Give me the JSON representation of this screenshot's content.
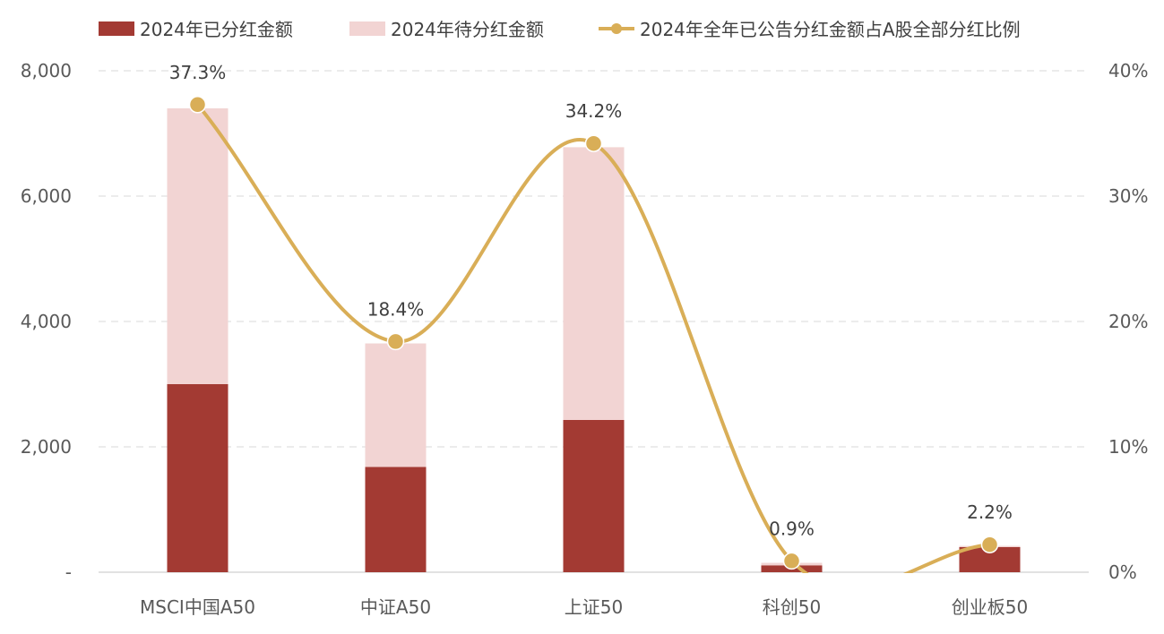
{
  "legend": {
    "series_paid": "2024年已分红金额",
    "series_pending": "2024年待分红金额",
    "series_ratio": "2024年全年已公告分红金额占A股全部分红比例"
  },
  "colors": {
    "paid": "#A33A33",
    "pending": "#F2D4D3",
    "ratio": "#D9AE57",
    "grid": "#D9D9D9",
    "axis_text": "#595959",
    "label_text": "#404040"
  },
  "chart_data": {
    "type": "bar",
    "stacked": true,
    "categories": [
      "MSCI中国A50",
      "中证A50",
      "上证50",
      "科创50",
      "创业板50"
    ],
    "series": [
      {
        "name": "2024年已分红金额",
        "values": [
          3000,
          1680,
          2430,
          110,
          400
        ]
      },
      {
        "name": "2024年待分红金额",
        "values": [
          4400,
          1970,
          4350,
          40,
          20
        ]
      }
    ],
    "line_series": {
      "name": "2024年全年已公告分红金额占A股全部分红比例",
      "values": [
        37.3,
        18.4,
        34.2,
        0.9,
        2.2
      ],
      "labels": [
        "37.3%",
        "18.4%",
        "34.2%",
        "0.9%",
        "2.2%"
      ],
      "axis": "right"
    },
    "ylim": [
      0,
      8000
    ],
    "yticks": [
      0,
      2000,
      4000,
      6000,
      8000
    ],
    "ytick_labels": [
      "-",
      "2,000",
      "4,000",
      "6,000",
      "8,000"
    ],
    "y2lim": [
      0,
      40
    ],
    "y2ticks": [
      0,
      10,
      20,
      30,
      40
    ],
    "y2tick_labels": [
      "0%",
      "10%",
      "20%",
      "30%",
      "40%"
    ],
    "grid": true,
    "legend_position": "top"
  }
}
